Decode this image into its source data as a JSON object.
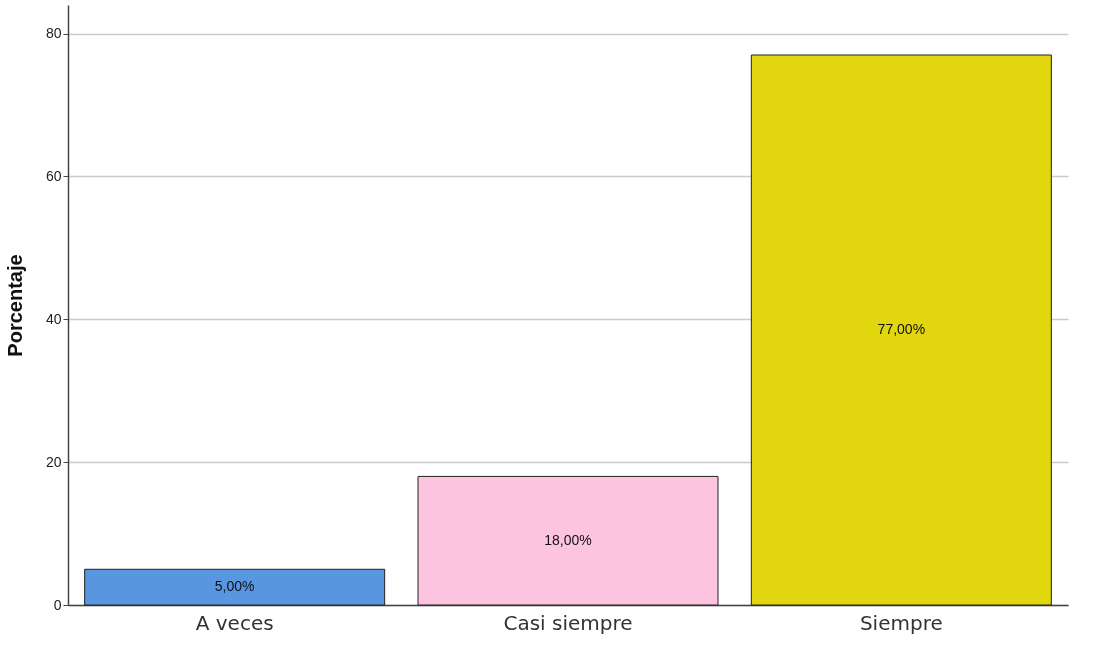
{
  "chart_data": {
    "type": "bar",
    "ylabel": "Porcentaje",
    "categories": [
      "A veces",
      "Casi siempre",
      "Siempre"
    ],
    "values": [
      5,
      18,
      77
    ],
    "colors": [
      "#5896e2",
      "#fdc4e0",
      "#e2d60e"
    ],
    "value_labels": [
      "5,00%",
      "18,00%",
      "77,00%"
    ],
    "ylim": [
      0,
      84
    ],
    "yticks": [
      0,
      20,
      40,
      60,
      80
    ],
    "grid": "y"
  }
}
